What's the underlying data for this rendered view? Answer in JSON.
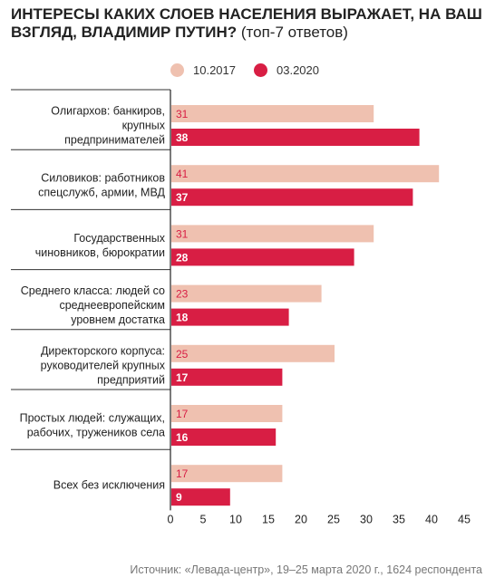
{
  "title_main": "ИНТЕРЕСЫ КАКИХ СЛОЕВ НАСЕЛЕНИЯ ВЫРАЖАЕТ, НА ВАШ ВЗГЛЯД, ВЛАДИМИР ПУТИН?",
  "title_sub": " (топ-7 ответов)",
  "source": "Источник: «Левада-центр», 19–25 марта 2020 г., 1624 респондента",
  "colors": {
    "series_2017": "#efc1b0",
    "series_2020": "#d81e44",
    "label_2017": "#d81e44",
    "label_2020": "#ffffff"
  },
  "chart_data": {
    "type": "bar",
    "orientation": "horizontal",
    "categories": [
      [
        "Олигархов: банкиров,",
        "крупных",
        "предпринимателей"
      ],
      [
        "Силовиков: работников",
        "спецслужб, армии, МВД"
      ],
      [
        "Государственных",
        "чиновников, бюрократии"
      ],
      [
        "Среднего класса: людей со",
        "среднеевропейским",
        "уровнем достатка"
      ],
      [
        "Директорского корпуса:",
        "руководителей крупных",
        "предприятий"
      ],
      [
        "Простых людей: служащих,",
        "рабочих, тружеников села"
      ],
      [
        "Всех без исключения"
      ]
    ],
    "series": [
      {
        "name": "10.2017",
        "values": [
          31,
          41,
          31,
          23,
          25,
          17,
          17
        ]
      },
      {
        "name": "03.2020",
        "values": [
          38,
          37,
          28,
          18,
          17,
          16,
          9
        ]
      }
    ],
    "xticks": [
      0,
      5,
      10,
      15,
      20,
      25,
      30,
      35,
      40,
      45
    ],
    "xlim": [
      0,
      45
    ],
    "legend": "top"
  }
}
